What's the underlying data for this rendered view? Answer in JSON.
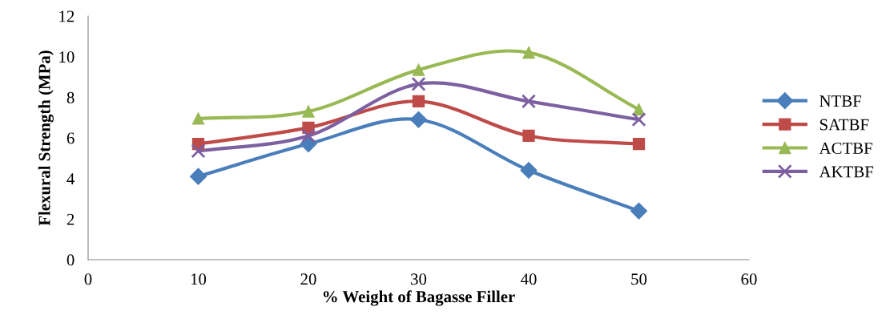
{
  "chart_data": {
    "type": "line",
    "xlabel": "% Weight of Bagasse Filler",
    "ylabel": "Flexural Strength (MPa)",
    "x": [
      10,
      20,
      30,
      40,
      50
    ],
    "xlim": [
      0,
      60
    ],
    "xticks": [
      0,
      10,
      20,
      30,
      40,
      50,
      60
    ],
    "ylim": [
      0,
      12
    ],
    "yticks": [
      0,
      2,
      4,
      6,
      8,
      10,
      12
    ],
    "grid": false,
    "legend": "right",
    "series": [
      {
        "name": "NTBF",
        "color": "#4a7ebb",
        "marker": "diamond",
        "values": [
          4.1,
          5.7,
          6.9,
          4.4,
          2.4
        ]
      },
      {
        "name": "SATBF",
        "color": "#be4b48",
        "marker": "square",
        "values": [
          5.7,
          6.5,
          7.8,
          6.1,
          5.7
        ]
      },
      {
        "name": "ACTBF",
        "color": "#98b954",
        "marker": "triangle",
        "values": [
          6.95,
          7.3,
          9.35,
          10.2,
          7.4
        ]
      },
      {
        "name": "AKTBF",
        "color": "#7d60a0",
        "marker": "cross",
        "values": [
          5.35,
          6.1,
          8.65,
          7.8,
          6.9
        ]
      }
    ]
  }
}
